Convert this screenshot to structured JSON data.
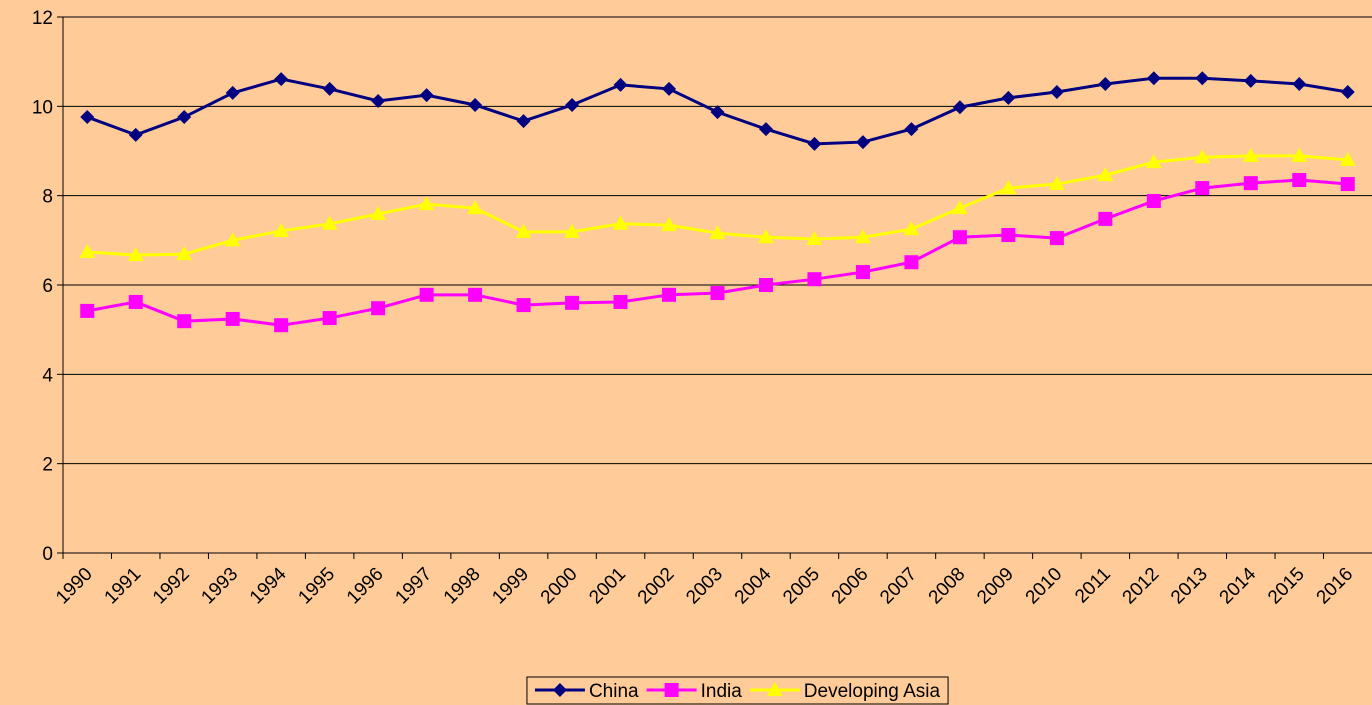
{
  "chart_data": {
    "type": "line",
    "categories": [
      "1990",
      "1991",
      "1992",
      "1993",
      "1994",
      "1995",
      "1996",
      "1997",
      "1998",
      "1999",
      "2000",
      "2001",
      "2002",
      "2003",
      "2004",
      "2005",
      "2006",
      "2007",
      "2008",
      "2009",
      "2010",
      "2011",
      "2012",
      "2013",
      "2014",
      "2015",
      "2016"
    ],
    "series": [
      {
        "name": "China",
        "color": "#000080",
        "marker": "diamond",
        "values": [
          9.76,
          9.36,
          9.76,
          10.3,
          10.61,
          10.39,
          10.12,
          10.25,
          10.03,
          9.67,
          10.03,
          10.48,
          10.39,
          9.87,
          9.49,
          9.16,
          9.2,
          9.49,
          9.98,
          10.19,
          10.32,
          10.5,
          10.63,
          10.63,
          10.57,
          10.5,
          10.32
        ]
      },
      {
        "name": "India",
        "color": "#ff00ff",
        "marker": "square",
        "values": [
          5.42,
          5.62,
          5.19,
          5.24,
          5.1,
          5.26,
          5.48,
          5.78,
          5.78,
          5.55,
          5.6,
          5.62,
          5.78,
          5.82,
          6.0,
          6.13,
          6.29,
          6.51,
          7.07,
          7.12,
          7.05,
          7.48,
          7.88,
          8.17,
          8.28,
          8.35,
          8.26
        ]
      },
      {
        "name": "Developing Asia",
        "color": "#ffff00",
        "marker": "triangle",
        "values": [
          6.74,
          6.67,
          6.69,
          7.0,
          7.21,
          7.37,
          7.59,
          7.81,
          7.72,
          7.19,
          7.19,
          7.37,
          7.34,
          7.16,
          7.07,
          7.03,
          7.07,
          7.25,
          7.72,
          8.17,
          8.26,
          8.46,
          8.75,
          8.86,
          8.89,
          8.89,
          8.8
        ]
      }
    ],
    "ylim": [
      0,
      12
    ],
    "yticks": [
      0,
      2,
      4,
      6,
      8,
      10,
      12
    ],
    "grid": true,
    "legend": "bottom"
  }
}
